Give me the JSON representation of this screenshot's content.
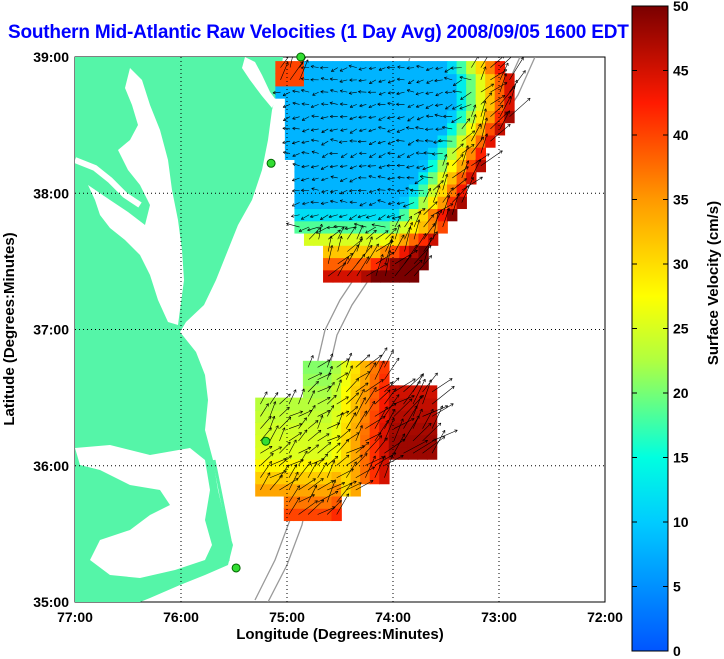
{
  "title": "Southern Mid-Atlantic Raw Velocities (1 Day Avg) 2008/09/05 1600 EDT",
  "map": {
    "xlabel": "Longitude (Degrees:Minutes)",
    "ylabel": "Latitude (Degrees:Minutes)",
    "x_ticks": [
      "77:00",
      "76:00",
      "75:00",
      "74:00",
      "73:00",
      "72:00"
    ],
    "y_ticks": [
      "39:00",
      "38:00",
      "37:00",
      "36:00",
      "35:00"
    ],
    "lon_range": [
      -77,
      -72
    ],
    "lat_range": [
      35,
      39
    ],
    "grid": true,
    "land_color": "#55f5a8",
    "water_color": "#ffffff"
  },
  "colorbar": {
    "label": "Surface Velocity (cm/s)",
    "ticks": [
      "0",
      "5",
      "10",
      "15",
      "20",
      "25",
      "30",
      "35",
      "40",
      "45",
      "50"
    ],
    "range": [
      0,
      50
    ]
  },
  "sites": [
    {
      "name": "site",
      "lon": -74.87,
      "lat": 39.0
    },
    {
      "name": "site",
      "lon": -75.15,
      "lat": 38.22
    },
    {
      "name": "site",
      "lon": -75.2,
      "lat": 36.18
    },
    {
      "name": "site",
      "lon": -75.48,
      "lat": 35.25
    }
  ],
  "chart_data": {
    "type": "heatmap",
    "xlabel": "Longitude (Degrees:Minutes)",
    "ylabel": "Latitude (Degrees:Minutes)",
    "colorbar_label": "Surface Velocity (cm/s)",
    "vmin": 0,
    "vmax": 50,
    "regions": [
      {
        "name": "northern",
        "lon_min": -75.2,
        "lon_max": -72.9,
        "lat_min": 37.35,
        "lat_max": 38.95,
        "speed_interior": 8,
        "speed_southern_edge": 45,
        "speed_eastern_edge": 48
      },
      {
        "name": "southern",
        "lon_min": -75.3,
        "lon_max": -73.6,
        "lat_min": 35.6,
        "lat_max": 36.75,
        "speed_west": 25,
        "speed_south": 40,
        "speed_east": 48
      }
    ]
  }
}
